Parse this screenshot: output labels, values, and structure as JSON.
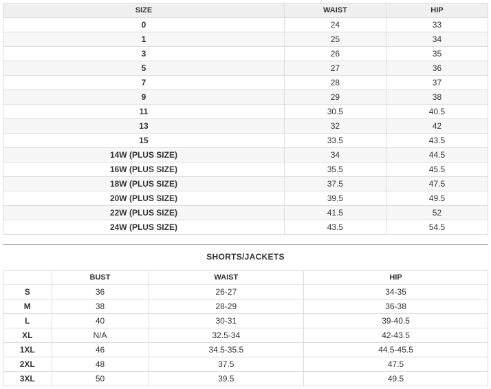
{
  "sizeTable": {
    "headers": [
      "SIZE",
      "WAIST",
      "HIP"
    ],
    "rows": [
      [
        "0",
        "24",
        "33"
      ],
      [
        "1",
        "25",
        "34"
      ],
      [
        "3",
        "26",
        "35"
      ],
      [
        "5",
        "27",
        "36"
      ],
      [
        "7",
        "28",
        "37"
      ],
      [
        "9",
        "29",
        "38"
      ],
      [
        "11",
        "30.5",
        "40.5"
      ],
      [
        "13",
        "32",
        "42"
      ],
      [
        "15",
        "33.5",
        "43.5"
      ],
      [
        "14W (PLUS SIZE)",
        "34",
        "44.5"
      ],
      [
        "16W (PLUS SIZE)",
        "35.5",
        "45.5"
      ],
      [
        "18W (PLUS SIZE)",
        "37.5",
        "47.5"
      ],
      [
        "20W (PLUS SIZE)",
        "39.5",
        "49.5"
      ],
      [
        "22W (PLUS SIZE)",
        "41.5",
        "52"
      ],
      [
        "24W (PLUS SIZE)",
        "43.5",
        "54.5"
      ]
    ]
  },
  "shortsJackets": {
    "title": "SHORTS/JACKETS",
    "headers": [
      "",
      "BUST",
      "WAIST",
      "HIP"
    ],
    "rows": [
      [
        "S",
        "36",
        "26-27",
        "34-35"
      ],
      [
        "M",
        "38",
        "28-29",
        "36-38"
      ],
      [
        "L",
        "40",
        "30-31",
        "39-40.5"
      ],
      [
        "XL",
        "N/A",
        "32.5-34",
        "42-43.5"
      ],
      [
        "1XL",
        "46",
        "34.5-35.5",
        "44.5-45.5"
      ],
      [
        "2XL",
        "48",
        "37.5",
        "47.5"
      ],
      [
        "3XL",
        "50",
        "39.5",
        "49.5"
      ]
    ]
  }
}
